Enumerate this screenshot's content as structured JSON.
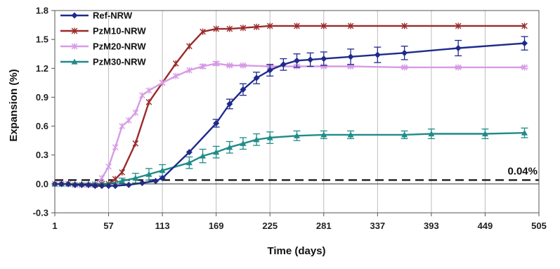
{
  "chart_data": {
    "type": "line",
    "xlabel": "Time (days)",
    "ylabel": "Expansion (%)",
    "xlim": [
      1,
      505
    ],
    "ylim": [
      -0.3,
      1.8
    ],
    "x_ticks": [
      1,
      57,
      113,
      169,
      225,
      281,
      337,
      393,
      449,
      505
    ],
    "y_ticks": [
      -0.3,
      0.0,
      0.3,
      0.6,
      0.9,
      1.2,
      1.5,
      1.8
    ],
    "y_tick_labels": [
      "-0.3",
      "0.0",
      "0.3",
      "0.6",
      "0.9",
      "1.2",
      "1.5",
      "1.8"
    ],
    "grid": "vertical",
    "legend_position": "top-left",
    "threshold": {
      "value": 0.04,
      "label": "0.04%",
      "style": "dashed",
      "color": "#111111"
    },
    "series": [
      {
        "name": "Ref-NRW",
        "color": "#1f2a8c",
        "marker": "diamond",
        "x": [
          1,
          8,
          15,
          22,
          29,
          36,
          43,
          50,
          57,
          64,
          78,
          92,
          106,
          113,
          141,
          169,
          183,
          197,
          211,
          225,
          239,
          253,
          267,
          281,
          309,
          337,
          365,
          421,
          490
        ],
        "y": [
          0.0,
          0.0,
          0.0,
          -0.01,
          -0.01,
          -0.01,
          -0.02,
          -0.02,
          -0.02,
          -0.02,
          -0.01,
          0.01,
          0.03,
          0.06,
          0.33,
          0.63,
          0.83,
          0.98,
          1.1,
          1.18,
          1.24,
          1.28,
          1.29,
          1.3,
          1.32,
          1.34,
          1.36,
          1.41,
          1.46
        ],
        "error": [
          0,
          0,
          0,
          0,
          0,
          0,
          0,
          0,
          0,
          0,
          0,
          0,
          0,
          0,
          0,
          0.04,
          0.05,
          0.06,
          0.06,
          0.06,
          0.06,
          0.07,
          0.07,
          0.07,
          0.08,
          0.08,
          0.07,
          0.08,
          0.07
        ]
      },
      {
        "name": "PzM10-NRW",
        "color": "#9b2a2a",
        "marker": "x-star",
        "x": [
          1,
          8,
          15,
          22,
          29,
          36,
          43,
          50,
          57,
          64,
          71,
          85,
          99,
          113,
          127,
          141,
          155,
          169,
          183,
          197,
          211,
          225,
          253,
          281,
          309,
          365,
          421,
          490
        ],
        "y": [
          0.0,
          0.0,
          0.0,
          -0.01,
          -0.01,
          -0.01,
          -0.01,
          0.0,
          0.0,
          0.05,
          0.12,
          0.42,
          0.85,
          1.05,
          1.25,
          1.43,
          1.58,
          1.61,
          1.61,
          1.62,
          1.63,
          1.64,
          1.64,
          1.64,
          1.64,
          1.64,
          1.64,
          1.64
        ]
      },
      {
        "name": "PzM20-NRW",
        "color": "#d79be6",
        "marker": "x-star",
        "x": [
          1,
          8,
          15,
          22,
          29,
          36,
          43,
          50,
          57,
          64,
          71,
          78,
          85,
          92,
          99,
          113,
          127,
          141,
          155,
          169,
          183,
          197,
          225,
          253,
          281,
          309,
          365,
          421,
          490
        ],
        "y": [
          0.0,
          0.0,
          0.0,
          -0.01,
          -0.01,
          -0.01,
          0.0,
          0.06,
          0.18,
          0.38,
          0.6,
          0.66,
          0.74,
          0.92,
          0.97,
          1.05,
          1.12,
          1.18,
          1.22,
          1.25,
          1.23,
          1.23,
          1.22,
          1.22,
          1.22,
          1.22,
          1.21,
          1.21,
          1.21
        ],
        "error": [
          0,
          0,
          0,
          0,
          0,
          0,
          0,
          0,
          0,
          0,
          0,
          0,
          0,
          0,
          0,
          0,
          0,
          0,
          0.02,
          0.02,
          0.01,
          0.01,
          0.01,
          0.01,
          0.01,
          0.01,
          0.01,
          0.01,
          0.01
        ]
      },
      {
        "name": "PzM30-NRW",
        "color": "#1f8c8a",
        "marker": "triangle",
        "x": [
          1,
          8,
          15,
          22,
          29,
          36,
          43,
          50,
          57,
          71,
          85,
          99,
          113,
          141,
          155,
          169,
          183,
          197,
          211,
          225,
          253,
          281,
          309,
          365,
          393,
          449,
          490
        ],
        "y": [
          0.0,
          0.0,
          0.0,
          0.0,
          0.0,
          0.0,
          0.0,
          0.0,
          0.0,
          0.03,
          0.06,
          0.1,
          0.14,
          0.22,
          0.29,
          0.33,
          0.38,
          0.42,
          0.46,
          0.48,
          0.5,
          0.51,
          0.51,
          0.51,
          0.52,
          0.52,
          0.53
        ],
        "error": [
          0,
          0,
          0,
          0,
          0,
          0,
          0,
          0,
          0,
          0.03,
          0.05,
          0.06,
          0.06,
          0.06,
          0.07,
          0.06,
          0.06,
          0.06,
          0.06,
          0.06,
          0.05,
          0.04,
          0.04,
          0.04,
          0.05,
          0.05,
          0.05
        ]
      }
    ]
  }
}
